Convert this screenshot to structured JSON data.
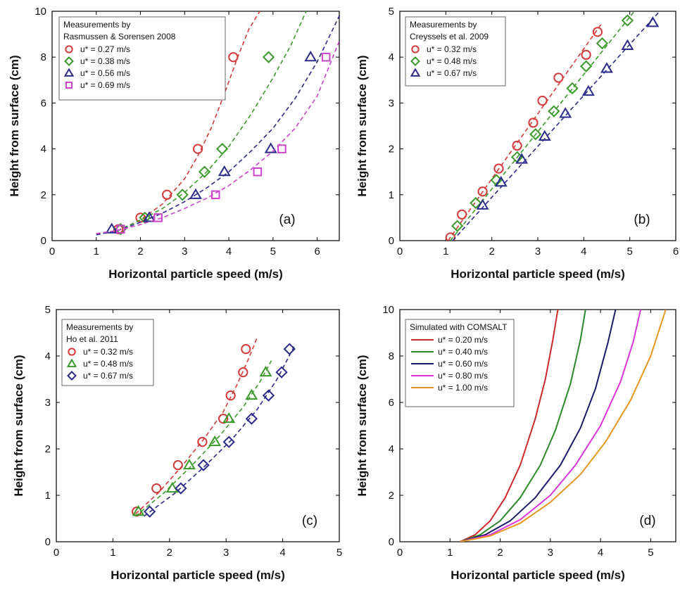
{
  "chart_data": [
    {
      "id": "a",
      "type": "scatter",
      "panel_label": "(a)",
      "xlabel": "Horizontal particle speed (m/s)",
      "ylabel": "Height from surface (cm)",
      "xlim": [
        0,
        6.5
      ],
      "ylim": [
        0,
        10
      ],
      "xticks": [
        0,
        1,
        2,
        3,
        4,
        5,
        6
      ],
      "yticks": [
        0,
        2,
        4,
        6,
        8,
        10
      ],
      "legend_title": [
        "Measurements by",
        "Rasmussen & Sorensen 2008"
      ],
      "legend_position": "top-left",
      "series": [
        {
          "name": "u* = 0.27 m/s",
          "marker": "circle",
          "color": "#d43a3a",
          "x": [
            1.5,
            2.0,
            2.6,
            3.3,
            4.1
          ],
          "y": [
            0.5,
            1.0,
            2.0,
            4.0,
            8.0
          ],
          "fit": {
            "x": [
              1.0,
              1.5,
              2.0,
              2.5,
              3.0,
              3.3,
              3.6,
              3.9,
              4.2,
              4.45,
              4.7
            ],
            "y": [
              0.3,
              0.45,
              0.9,
              1.6,
              2.7,
              3.7,
              4.9,
              6.4,
              8.0,
              9.2,
              10.0
            ]
          }
        },
        {
          "name": "u* = 0.38 m/s",
          "marker": "diamond",
          "color": "#3a9a2a",
          "x": [
            1.55,
            2.1,
            2.95,
            3.45,
            3.85,
            4.9
          ],
          "y": [
            0.5,
            1.0,
            2.0,
            3.0,
            4.0,
            8.0
          ],
          "fit": {
            "x": [
              1.0,
              1.5,
              2.0,
              2.5,
              3.0,
              3.5,
              4.0,
              4.5,
              5.0,
              5.4,
              5.75
            ],
            "y": [
              0.3,
              0.45,
              0.9,
              1.4,
              2.1,
              3.0,
              4.1,
              5.5,
              7.1,
              8.5,
              10.0
            ]
          }
        },
        {
          "name": "u* = 0.56 m/s",
          "marker": "triangle",
          "color": "#2a2a8a",
          "x": [
            1.35,
            2.2,
            3.25,
            3.9,
            4.95,
            5.85
          ],
          "y": [
            0.5,
            1.0,
            2.0,
            3.0,
            4.0,
            8.0
          ],
          "fit": {
            "x": [
              1.0,
              1.5,
              2.0,
              2.5,
              3.0,
              3.5,
              4.0,
              4.5,
              5.0,
              5.5,
              6.0,
              6.5
            ],
            "y": [
              0.25,
              0.45,
              0.8,
              1.2,
              1.7,
              2.3,
              3.0,
              3.9,
              4.9,
              6.2,
              7.8,
              9.8
            ]
          }
        },
        {
          "name": "u* = 0.69 m/s",
          "marker": "square",
          "color": "#cc44cc",
          "x": [
            1.55,
            2.4,
            3.7,
            4.65,
            5.2,
            6.2
          ],
          "y": [
            0.5,
            1.0,
            2.0,
            3.0,
            4.0,
            8.0
          ],
          "fit": {
            "x": [
              1.0,
              1.5,
              2.0,
              2.5,
              3.0,
              3.5,
              4.0,
              4.5,
              5.0,
              5.5,
              6.0,
              6.5
            ],
            "y": [
              0.3,
              0.45,
              0.7,
              1.0,
              1.4,
              1.85,
              2.4,
              3.1,
              3.9,
              4.9,
              6.3,
              8.7
            ]
          }
        }
      ]
    },
    {
      "id": "b",
      "type": "scatter",
      "panel_label": "(b)",
      "xlabel": "Horizontal particle speed (m/s)",
      "ylabel": "Height from surface (cm)",
      "xlim": [
        0,
        6
      ],
      "ylim": [
        0,
        5
      ],
      "xticks": [
        0,
        1,
        2,
        3,
        4,
        5,
        6
      ],
      "yticks": [
        0,
        1,
        2,
        3,
        4,
        5
      ],
      "legend_title": [
        "Measurements by",
        "Creyssels et al. 2009"
      ],
      "legend_position": "top-left",
      "series": [
        {
          "name": "u* = 0.32 m/s",
          "marker": "circle",
          "color": "#d43a3a",
          "x": [
            1.1,
            1.35,
            1.8,
            2.15,
            2.55,
            2.9,
            3.1,
            3.45,
            4.05,
            4.3
          ],
          "y": [
            0.07,
            0.57,
            1.07,
            1.57,
            2.07,
            2.57,
            3.05,
            3.55,
            4.05,
            4.55
          ],
          "fit": {
            "x": [
              1.05,
              4.4
            ],
            "y": [
              0.0,
              4.75
            ]
          }
        },
        {
          "name": "u* = 0.48 m/s",
          "marker": "diamond",
          "color": "#3a9a2a",
          "x": [
            1.25,
            1.65,
            2.1,
            2.55,
            2.95,
            3.35,
            3.75,
            4.05,
            4.4,
            4.95
          ],
          "y": [
            0.32,
            0.82,
            1.32,
            1.82,
            2.32,
            2.82,
            3.32,
            3.8,
            4.3,
            4.8
          ],
          "fit": {
            "x": [
              1.1,
              5.1
            ],
            "y": [
              0.0,
              5.0
            ]
          }
        },
        {
          "name": "u* = 0.67 m/s",
          "marker": "triangle",
          "color": "#2a2a8a",
          "x": [
            1.8,
            2.2,
            2.65,
            3.15,
            3.6,
            4.1,
            4.5,
            4.95,
            5.5
          ],
          "y": [
            0.77,
            1.27,
            1.77,
            2.27,
            2.77,
            3.25,
            3.75,
            4.25,
            4.75
          ],
          "fit": {
            "x": [
              1.15,
              5.65
            ],
            "y": [
              0.0,
              5.0
            ]
          }
        }
      ]
    },
    {
      "id": "c",
      "type": "scatter",
      "panel_label": "(c)",
      "xlabel": "Horizontal particle speed (m/s)",
      "ylabel": "Height from surface (cm)",
      "xlim": [
        0,
        5
      ],
      "ylim": [
        0,
        5
      ],
      "xticks": [
        0,
        1,
        2,
        3,
        4,
        5
      ],
      "yticks": [
        0,
        1,
        2,
        3,
        4,
        5
      ],
      "legend_title": [
        "Measurements by",
        "Ho et al. 2011"
      ],
      "legend_position": "top-left",
      "series": [
        {
          "name": "u* = 0.32 m/s",
          "marker": "circle",
          "color": "#d43a3a",
          "x": [
            1.42,
            1.77,
            2.15,
            2.58,
            2.95,
            3.08,
            3.3,
            3.35
          ],
          "y": [
            0.65,
            1.15,
            1.65,
            2.15,
            2.65,
            3.15,
            3.65,
            4.15
          ],
          "fit": {
            "x": [
              1.4,
              1.8,
              2.2,
              2.6,
              2.95,
              3.2,
              3.4,
              3.55
            ],
            "y": [
              0.6,
              1.05,
              1.6,
              2.2,
              2.8,
              3.4,
              3.95,
              4.4
            ]
          }
        },
        {
          "name": "u* = 0.48 m/s",
          "marker": "triangle",
          "color": "#3a9a2a",
          "x": [
            1.45,
            2.05,
            2.35,
            2.8,
            3.05,
            3.45,
            3.7
          ],
          "y": [
            0.65,
            1.15,
            1.65,
            2.15,
            2.65,
            3.15,
            3.65
          ],
          "fit": {
            "x": [
              1.4,
              1.9,
              2.4,
              2.9,
              3.3,
              3.6,
              3.8
            ],
            "y": [
              0.55,
              1.05,
              1.65,
              2.3,
              2.9,
              3.45,
              3.9
            ]
          }
        },
        {
          "name": "u* = 0.67 m/s",
          "marker": "diamond",
          "color": "#2a2a8a",
          "x": [
            1.65,
            2.2,
            2.6,
            3.05,
            3.45,
            3.75,
            3.98,
            4.12
          ],
          "y": [
            0.65,
            1.15,
            1.65,
            2.15,
            2.65,
            3.15,
            3.65,
            4.15
          ],
          "fit": {
            "x": [
              1.55,
              2.1,
              2.6,
              3.1,
              3.55,
              3.9,
              4.2
            ],
            "y": [
              0.55,
              1.05,
              1.6,
              2.2,
              2.85,
              3.5,
              4.2
            ]
          }
        }
      ]
    },
    {
      "id": "d",
      "type": "line",
      "panel_label": "(d)",
      "xlabel": "Horizontal particle speed (m/s)",
      "ylabel": "Height from surface (cm)",
      "xlim": [
        0,
        5.5
      ],
      "ylim": [
        0,
        10
      ],
      "xticks": [
        0,
        1,
        2,
        3,
        4,
        5
      ],
      "yticks": [
        0,
        2,
        4,
        6,
        8,
        10
      ],
      "legend_title": [
        "Simulated with COMSALT"
      ],
      "legend_position": "top-left",
      "series": [
        {
          "name": "u* = 0.20 m/s",
          "color": "#cc2a2a",
          "x": [
            1.2,
            1.5,
            1.8,
            2.1,
            2.4,
            2.7,
            2.9,
            3.05,
            3.15
          ],
          "y": [
            0.0,
            0.3,
            0.9,
            1.9,
            3.3,
            5.3,
            7.0,
            8.7,
            10.0
          ]
        },
        {
          "name": "u* = 0.40 m/s",
          "color": "#2a8a2a",
          "x": [
            1.2,
            1.6,
            2.0,
            2.4,
            2.8,
            3.1,
            3.4,
            3.6,
            3.7
          ],
          "y": [
            0.0,
            0.3,
            0.9,
            1.9,
            3.3,
            4.8,
            6.8,
            8.7,
            10.0
          ]
        },
        {
          "name": "u* = 0.60 m/s",
          "color": "#1a1a6a",
          "x": [
            1.2,
            1.7,
            2.2,
            2.7,
            3.2,
            3.6,
            3.9,
            4.15,
            4.3
          ],
          "y": [
            0.0,
            0.3,
            0.9,
            1.9,
            3.3,
            4.9,
            6.6,
            8.6,
            10.0
          ]
        },
        {
          "name": "u* = 0.80 m/s",
          "color": "#dd33dd",
          "x": [
            1.2,
            1.8,
            2.4,
            3.0,
            3.5,
            4.0,
            4.4,
            4.65,
            4.8
          ],
          "y": [
            0.0,
            0.3,
            0.95,
            2.0,
            3.3,
            5.0,
            6.9,
            8.6,
            10.0
          ]
        },
        {
          "name": "u* = 1.00 m/s",
          "color": "#e89520",
          "x": [
            1.2,
            1.8,
            2.4,
            3.0,
            3.6,
            4.1,
            4.6,
            5.0,
            5.3
          ],
          "y": [
            0.0,
            0.25,
            0.8,
            1.7,
            2.9,
            4.3,
            6.1,
            8.0,
            10.0
          ]
        }
      ]
    }
  ]
}
